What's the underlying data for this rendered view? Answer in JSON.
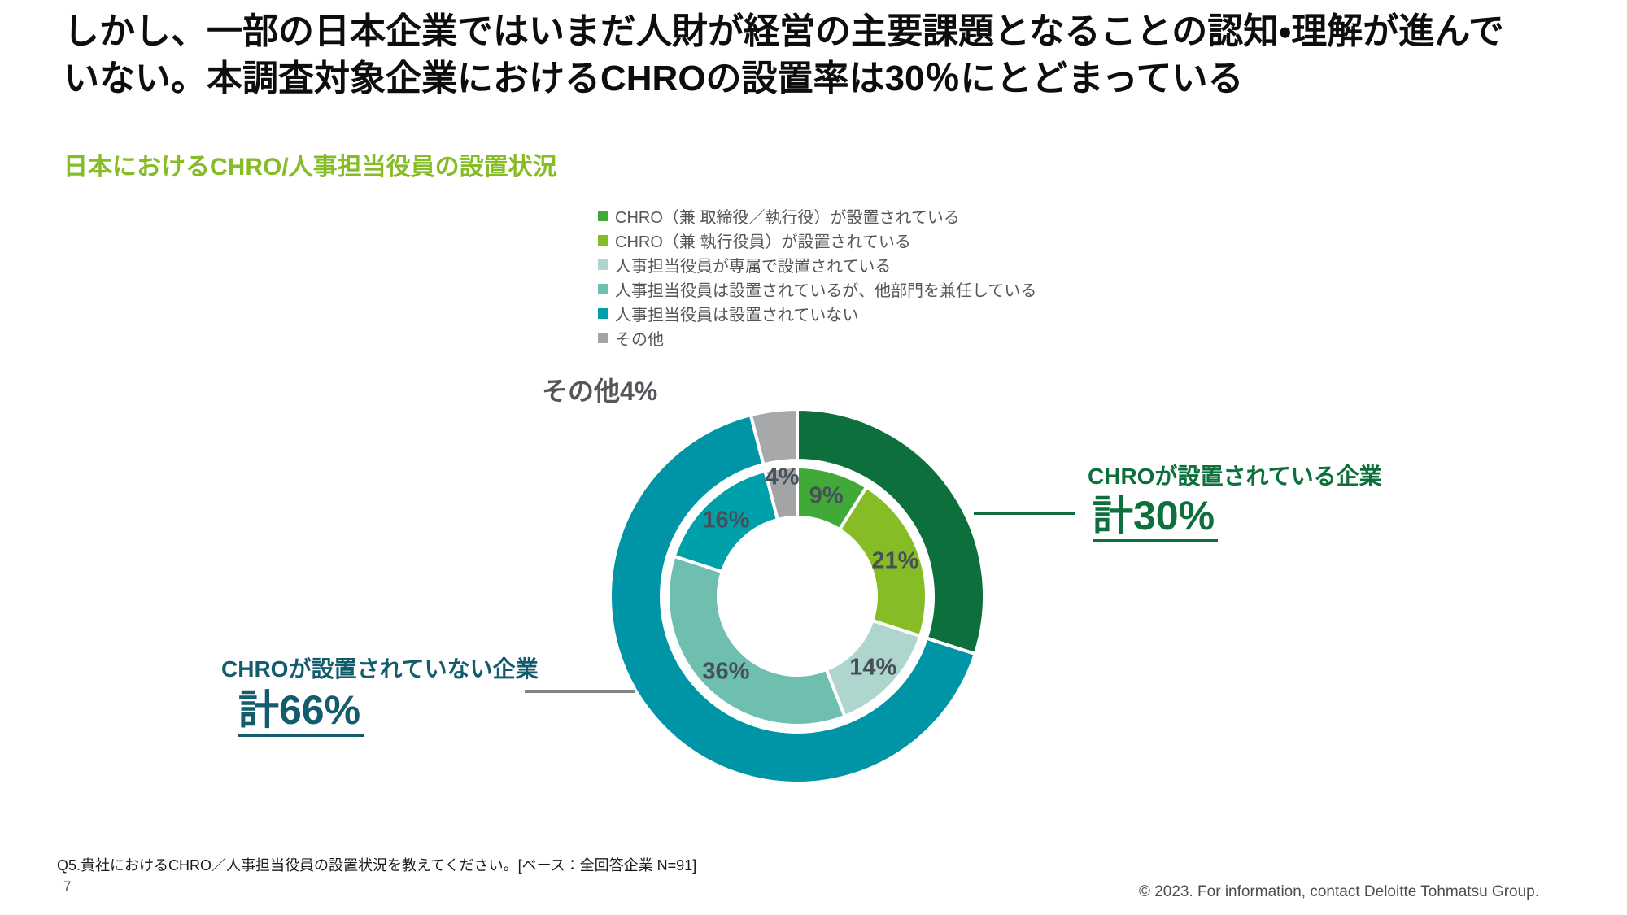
{
  "header": {
    "title_line1": "しかし、一部の日本企業ではいまだ人財が経営の主要課題となることの認知・理解が進んで",
    "title_line2": "いない。本調査対象企業におけるCHROの設置率は30％にとどまっている",
    "subtitle": "日本におけるCHRO/人事担当役員の設置状況"
  },
  "chart_data": {
    "type": "donut",
    "title": "日本におけるCHRO/人事担当役員の設置状況",
    "units": "%",
    "base_note": "全回答企業 N=91",
    "legend_position": "top",
    "inner_ring": [
      {
        "name": "CHRO（兼 取締役／執行役）が設置されている",
        "value": 9,
        "color": "#41A938"
      },
      {
        "name": "CHRO（兼 執行役員）が設置されている",
        "value": 21,
        "color": "#86BC25"
      },
      {
        "name": "人事担当役員が専属で設置されている",
        "value": 14,
        "color": "#AFD5CF"
      },
      {
        "name": "人事担当役員は設置されているが、他部門を兼任している",
        "value": 36,
        "color": "#6FBFB1"
      },
      {
        "name": "人事担当役員は設置されていない",
        "value": 16,
        "color": "#00A0AB"
      },
      {
        "name": "その他",
        "value": 4,
        "color": "#A2A4A6"
      }
    ],
    "outer_ring": [
      {
        "name": "CHROが設置されている企業",
        "value": 30,
        "color": "#0D6F3C"
      },
      {
        "name": "CHROが設置されていない企業",
        "value": 66,
        "color": "#0095A6"
      },
      {
        "name": "その他",
        "value": 4,
        "color": "#A7A8AA"
      }
    ],
    "callouts": {
      "other": "その他4%",
      "right": {
        "title": "CHROが設置されている企業",
        "total": "計30%"
      },
      "left": {
        "title": "CHROが設置されていない企業",
        "total": "計66%"
      }
    }
  },
  "footer": {
    "footnote": "Q5.貴社におけるCHRO／人事担当役員の設置状況を教えてください。[ベース：全回答企業 N=91]",
    "page_number": "7",
    "copyright": "© 2023. For information, contact Deloitte Tohmatsu Group."
  }
}
